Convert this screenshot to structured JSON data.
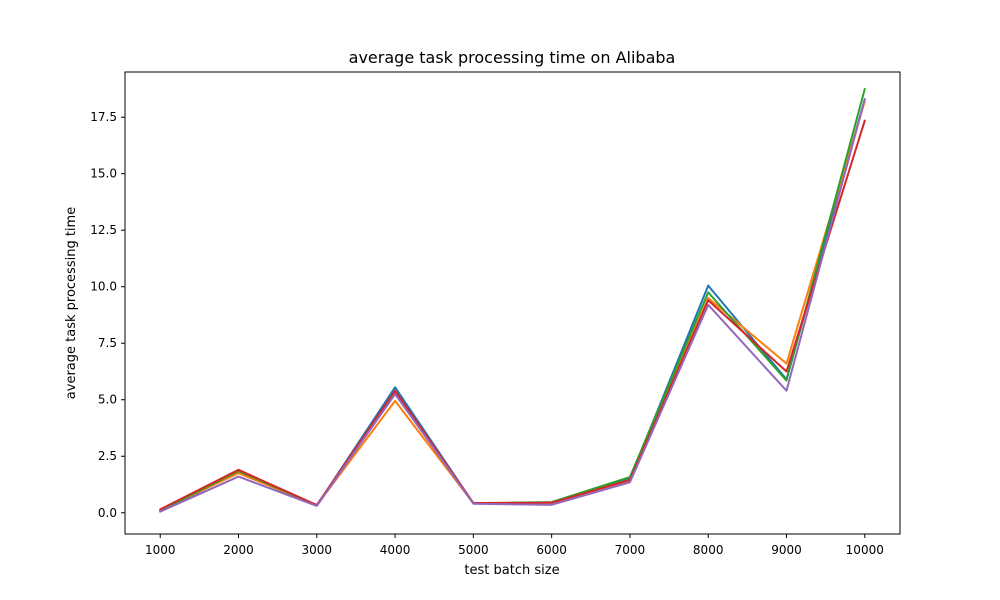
{
  "chart_data": {
    "type": "line",
    "title": "average task processing time on Alibaba",
    "xlabel": "test batch size",
    "ylabel": "average task processing time",
    "x": [
      1000,
      2000,
      3000,
      4000,
      5000,
      6000,
      7000,
      8000,
      9000,
      10000
    ],
    "x_tick_labels": [
      "1000",
      "2000",
      "3000",
      "4000",
      "5000",
      "6000",
      "7000",
      "8000",
      "9000",
      "10000"
    ],
    "y_ticks": [
      0.0,
      2.5,
      5.0,
      7.5,
      10.0,
      12.5,
      15.0,
      17.5
    ],
    "y_tick_labels": [
      "0.0",
      "2.5",
      "5.0",
      "7.5",
      "10.0",
      "12.5",
      "15.0",
      "17.5"
    ],
    "xlim": [
      550,
      10450
    ],
    "ylim": [
      -0.94,
      19.5
    ],
    "grid": false,
    "series": [
      {
        "color": "#1f77b4",
        "values": [
          0.05,
          1.8,
          0.32,
          5.55,
          0.42,
          0.45,
          1.5,
          10.05,
          5.9,
          18.3
        ]
      },
      {
        "color": "#ff7f0e",
        "values": [
          0.12,
          1.75,
          0.33,
          4.95,
          0.42,
          0.45,
          1.45,
          9.5,
          6.6,
          18.2
        ]
      },
      {
        "color": "#2ca02c",
        "values": [
          0.1,
          1.85,
          0.33,
          5.3,
          0.42,
          0.47,
          1.58,
          9.75,
          5.85,
          18.75
        ]
      },
      {
        "color": "#d62728",
        "values": [
          0.15,
          1.9,
          0.34,
          5.4,
          0.43,
          0.44,
          1.45,
          9.4,
          6.25,
          17.35
        ]
      },
      {
        "color": "#9467bd",
        "values": [
          0.05,
          1.6,
          0.3,
          5.25,
          0.4,
          0.35,
          1.35,
          9.2,
          5.4,
          18.3
        ]
      }
    ]
  }
}
